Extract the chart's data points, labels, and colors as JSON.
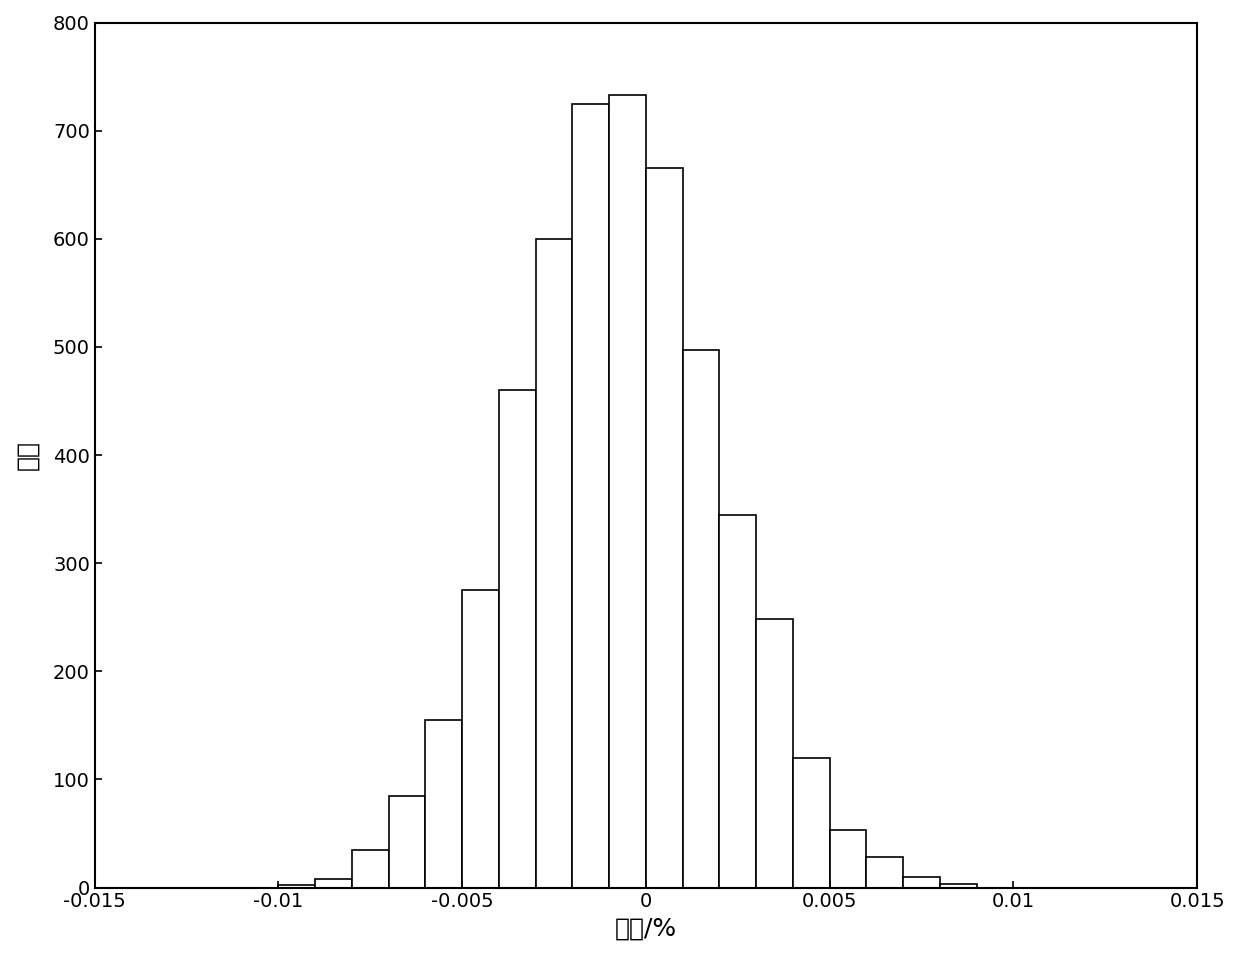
{
  "title": "",
  "xlabel": "误差/%",
  "ylabel": "次数",
  "xlim": [
    -0.015,
    0.015
  ],
  "ylim": [
    0,
    800
  ],
  "yticks": [
    0,
    100,
    200,
    300,
    400,
    500,
    600,
    700,
    800
  ],
  "xticks": [
    -0.015,
    -0.01,
    -0.005,
    0,
    0.005,
    0.01,
    0.015
  ],
  "xtick_labels": [
    "-0.015",
    "-0.01",
    "-0.005",
    "0",
    "0.005",
    "0.01",
    "0.015"
  ],
  "bar_left_edges": [
    -0.01,
    -0.009,
    -0.008,
    -0.007,
    -0.006,
    -0.005,
    -0.004,
    -0.003,
    -0.002,
    -0.001,
    0.0,
    0.001,
    0.002,
    0.003,
    0.004,
    0.005,
    0.006,
    0.007,
    0.008
  ],
  "bar_heights": [
    2,
    8,
    35,
    85,
    155,
    275,
    460,
    600,
    725,
    733,
    665,
    497,
    345,
    248,
    120,
    53,
    28,
    10,
    3
  ],
  "bar_width": 0.001,
  "bar_color": "#ffffff",
  "bar_edge_color": "#000000",
  "bar_linewidth": 1.2,
  "background_color": "#ffffff",
  "xlabel_fontsize": 18,
  "ylabel_fontsize": 18,
  "tick_fontsize": 14,
  "spine_linewidth": 1.5
}
